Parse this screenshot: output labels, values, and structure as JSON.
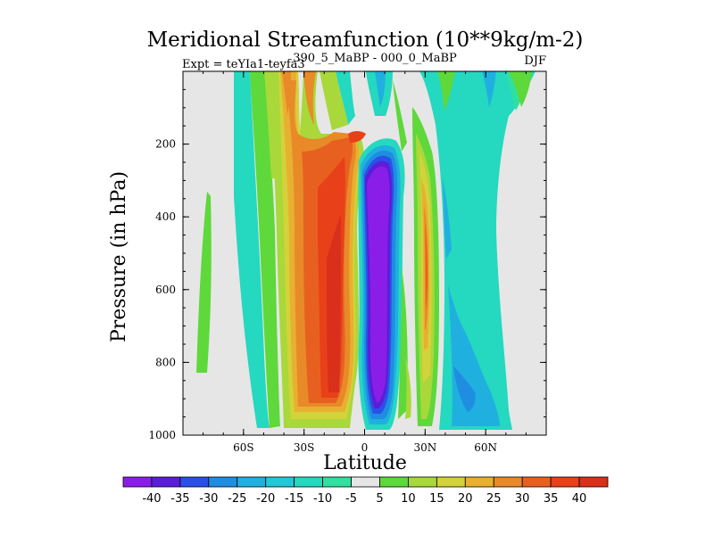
{
  "chart_data": {
    "type": "filled-contour",
    "title": "Meridional Streamfunction (10**9kg/m-2)",
    "subtitle_left": "Expt = teYIa1-teyfa3",
    "subtitle_center": "390_5_MaBP - 000_0_MaBP",
    "subtitle_right": "DJF",
    "xlabel": "Latitude",
    "ylabel": "Pressure (in hPa)",
    "xlim": [
      -90,
      90
    ],
    "ylim": [
      0,
      1000
    ],
    "y_inverted": true,
    "x_ticks": [
      {
        "value": -60,
        "label": "60S"
      },
      {
        "value": -30,
        "label": "30S"
      },
      {
        "value": 0,
        "label": "0"
      },
      {
        "value": 30,
        "label": "30N"
      },
      {
        "value": 60,
        "label": "60N"
      }
    ],
    "y_ticks": [
      {
        "value": 200,
        "label": "200"
      },
      {
        "value": 400,
        "label": "400"
      },
      {
        "value": 600,
        "label": "600"
      },
      {
        "value": 800,
        "label": "800"
      },
      {
        "value": 1000,
        "label": "1000"
      }
    ],
    "colorbar": {
      "labels": [
        "-40",
        "-35",
        "-30",
        "-25",
        "-20",
        "-15",
        "-10",
        "-5",
        "5",
        "10",
        "15",
        "20",
        "25",
        "30",
        "35",
        "40"
      ],
      "colors": [
        "#8a1ee8",
        "#5a1ed8",
        "#2a50e8",
        "#1f8de0",
        "#1fb0e0",
        "#22c8d8",
        "#25d8c0",
        "#2fe0a0",
        "#e6e6e6",
        "#5ed83a",
        "#a8d83a",
        "#d4d23a",
        "#e8b030",
        "#e88a28",
        "#e86020",
        "#e84018",
        "#d8301a"
      ]
    },
    "features": [
      {
        "name": "strong negative cell",
        "lat_range": [
          -2,
          18
        ],
        "pressure_range": [
          200,
          960
        ],
        "min_value": -40
      },
      {
        "name": "southern positive cell",
        "lat_range": [
          -35,
          -3
        ],
        "pressure_range": [
          80,
          960
        ],
        "max_value": 40
      },
      {
        "name": "northern positive band",
        "lat_range": [
          28,
          40
        ],
        "pressure_range": [
          180,
          780
        ],
        "max_value": 30
      },
      {
        "name": "northern negative band",
        "lat_range": [
          42,
          66
        ],
        "pressure_range": [
          80,
          960
        ],
        "min_value": -20
      },
      {
        "name": "high-latitude weak bands",
        "lat_range": [
          -80,
          -60
        ],
        "pressure_range": [
          80,
          960
        ],
        "values": [
          -10,
          5
        ]
      }
    ]
  }
}
